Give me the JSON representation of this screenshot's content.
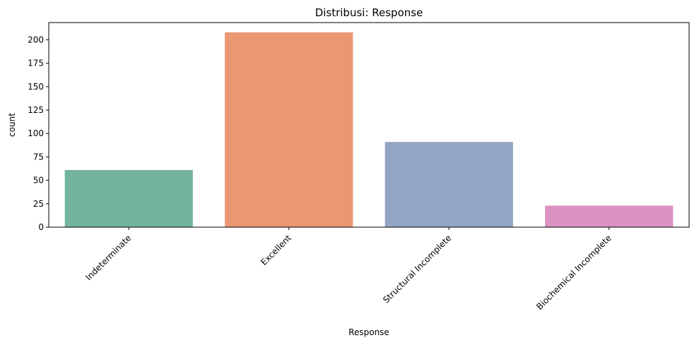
{
  "chart_data": {
    "type": "bar",
    "title": "Distribusi: Response",
    "xlabel": "Response",
    "ylabel": "count",
    "categories": [
      "Indeterminate",
      "Excellent",
      "Structural Incomplete",
      "Biochemical Incomplete"
    ],
    "values": [
      61,
      208,
      91,
      23
    ],
    "colors": [
      "#74b49e",
      "#ea9774",
      "#94a4c3",
      "#da93c1"
    ],
    "ylim": [
      0,
      218.4
    ],
    "yticks": [
      0,
      25,
      50,
      75,
      100,
      125,
      150,
      175,
      200
    ],
    "grid": false,
    "legend": "none"
  }
}
